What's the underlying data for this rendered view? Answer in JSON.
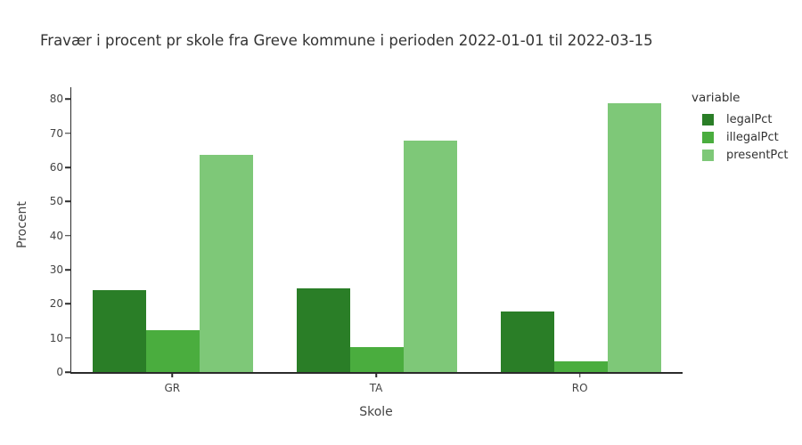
{
  "title": "Fravær i procent pr skole fra Greve kommune i perioden 2022-01-01 til 2022-03-15",
  "chart_data": {
    "type": "bar",
    "title": "Fravær i procent pr skole fra Greve kommune i perioden 2022-01-01 til 2022-03-15",
    "xlabel": "Skole",
    "ylabel": "Procent",
    "categories": [
      "GR",
      "TA",
      "RO"
    ],
    "series": [
      {
        "name": "legalPct",
        "color": "#2a7e27",
        "values": [
          24.1,
          24.5,
          17.8
        ]
      },
      {
        "name": "illegalPct",
        "color": "#4aad3e",
        "values": [
          12.2,
          7.3,
          3.1
        ]
      },
      {
        "name": "presentPct",
        "color": "#7ec878",
        "values": [
          63.6,
          67.9,
          78.9
        ]
      }
    ],
    "yticks": [
      0,
      10,
      20,
      30,
      40,
      50,
      60,
      70,
      80
    ],
    "ylim": [
      0,
      83.5
    ],
    "grid": false,
    "legend_title": "variable",
    "legend_position": "right",
    "background": "#ffffff",
    "axis_color": "#2b2b2b"
  }
}
